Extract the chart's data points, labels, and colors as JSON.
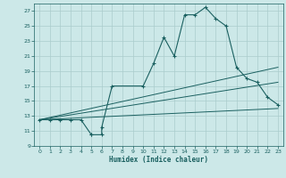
{
  "xlabel": "Humidex (Indice chaleur)",
  "bg_color": "#cce8e8",
  "grid_color": "#aacccc",
  "line_color": "#1a6060",
  "xlim": [
    -0.5,
    23.5
  ],
  "ylim": [
    9,
    28
  ],
  "xticks": [
    0,
    1,
    2,
    3,
    4,
    5,
    6,
    7,
    8,
    9,
    10,
    11,
    12,
    13,
    14,
    15,
    16,
    17,
    18,
    19,
    20,
    21,
    22,
    23
  ],
  "yticks": [
    9,
    11,
    13,
    15,
    17,
    19,
    21,
    23,
    25,
    27
  ],
  "curve": {
    "x": [
      0,
      1,
      2,
      3,
      4,
      5,
      5,
      6,
      6,
      7,
      10,
      11,
      12,
      13,
      14,
      15,
      16,
      17,
      18,
      19,
      20,
      21,
      22,
      23
    ],
    "y": [
      12.5,
      12.5,
      12.5,
      12.5,
      12.5,
      10.5,
      10.5,
      10.5,
      11.5,
      17,
      17,
      20,
      23.5,
      21,
      26.5,
      26.5,
      27.5,
      26,
      25,
      19.5,
      18,
      17.5,
      15.5,
      14.5
    ]
  },
  "line1": {
    "x": [
      0,
      23
    ],
    "y": [
      12.5,
      19.5
    ]
  },
  "line2": {
    "x": [
      0,
      23
    ],
    "y": [
      12.5,
      17.5
    ]
  },
  "line3": {
    "x": [
      0,
      23
    ],
    "y": [
      12.5,
      14.0
    ]
  }
}
